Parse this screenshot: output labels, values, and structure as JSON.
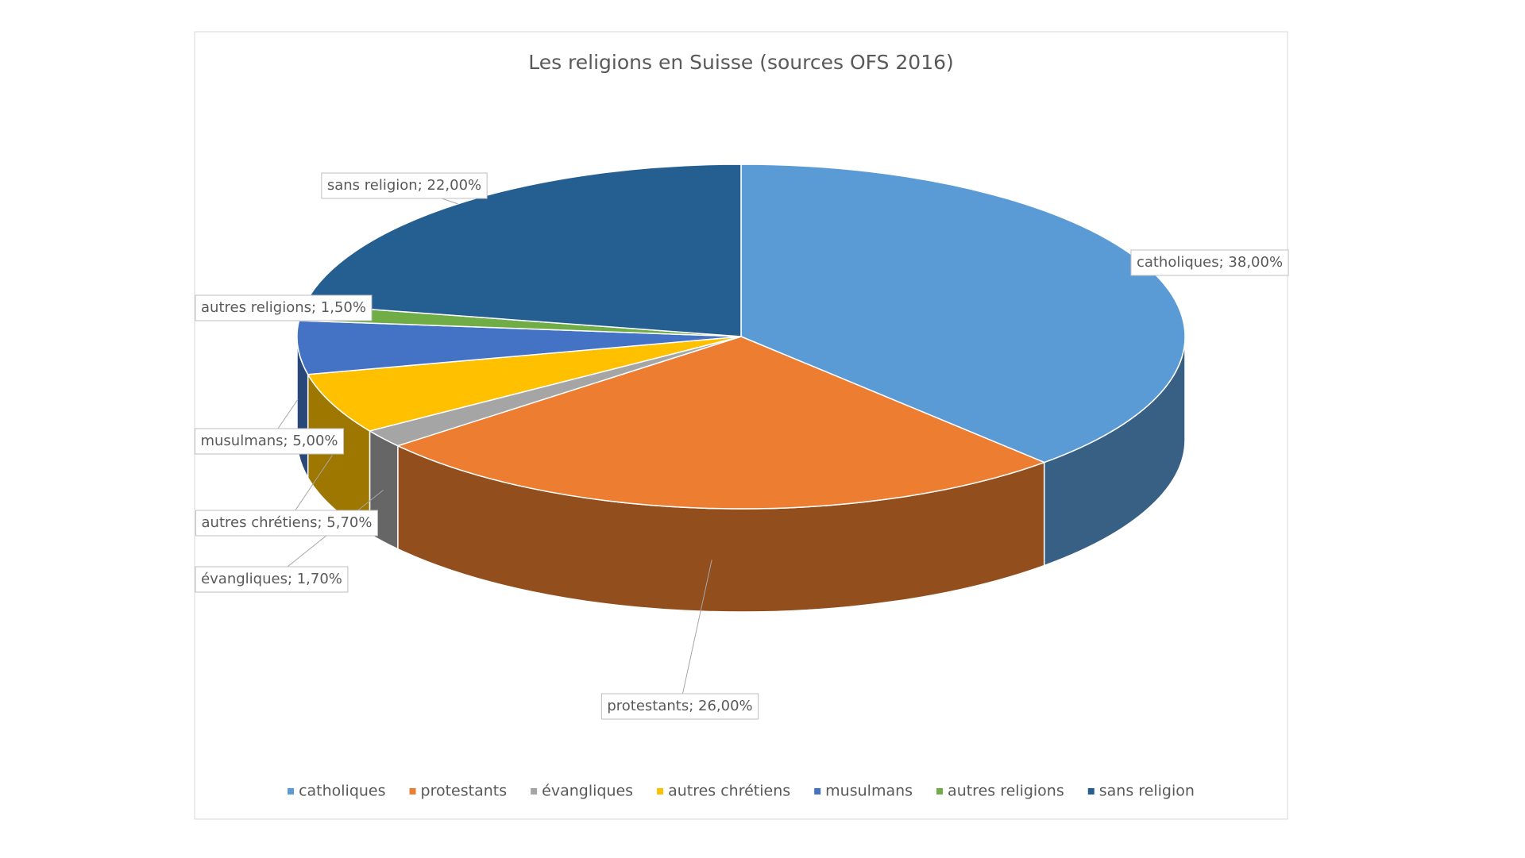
{
  "chart_data": {
    "type": "pie3d",
    "title": "Les religions en Suisse (sources OFS 2016)",
    "categories": [
      "catholiques",
      "protestants",
      "évangliques",
      "autres chrétiens",
      "musulmans",
      "autres religions",
      "sans religion"
    ],
    "values": [
      38,
      26,
      1.7,
      5.7,
      5,
      1.5,
      22
    ],
    "value_labels": [
      "catholiques; 38,00%",
      "protestants; 26,00%",
      "évangliques; 1,70%",
      "autres chrétiens; 5,70%",
      "musulmans; 5,00%",
      "autres religions; 1,50%",
      "sans religion; 22,00%"
    ],
    "colors": [
      "#5B9BD5",
      "#ED7D31",
      "#A5A5A5",
      "#FFC000",
      "#4472C4",
      "#70AD47",
      "#255E91"
    ],
    "legend": "bottom"
  }
}
